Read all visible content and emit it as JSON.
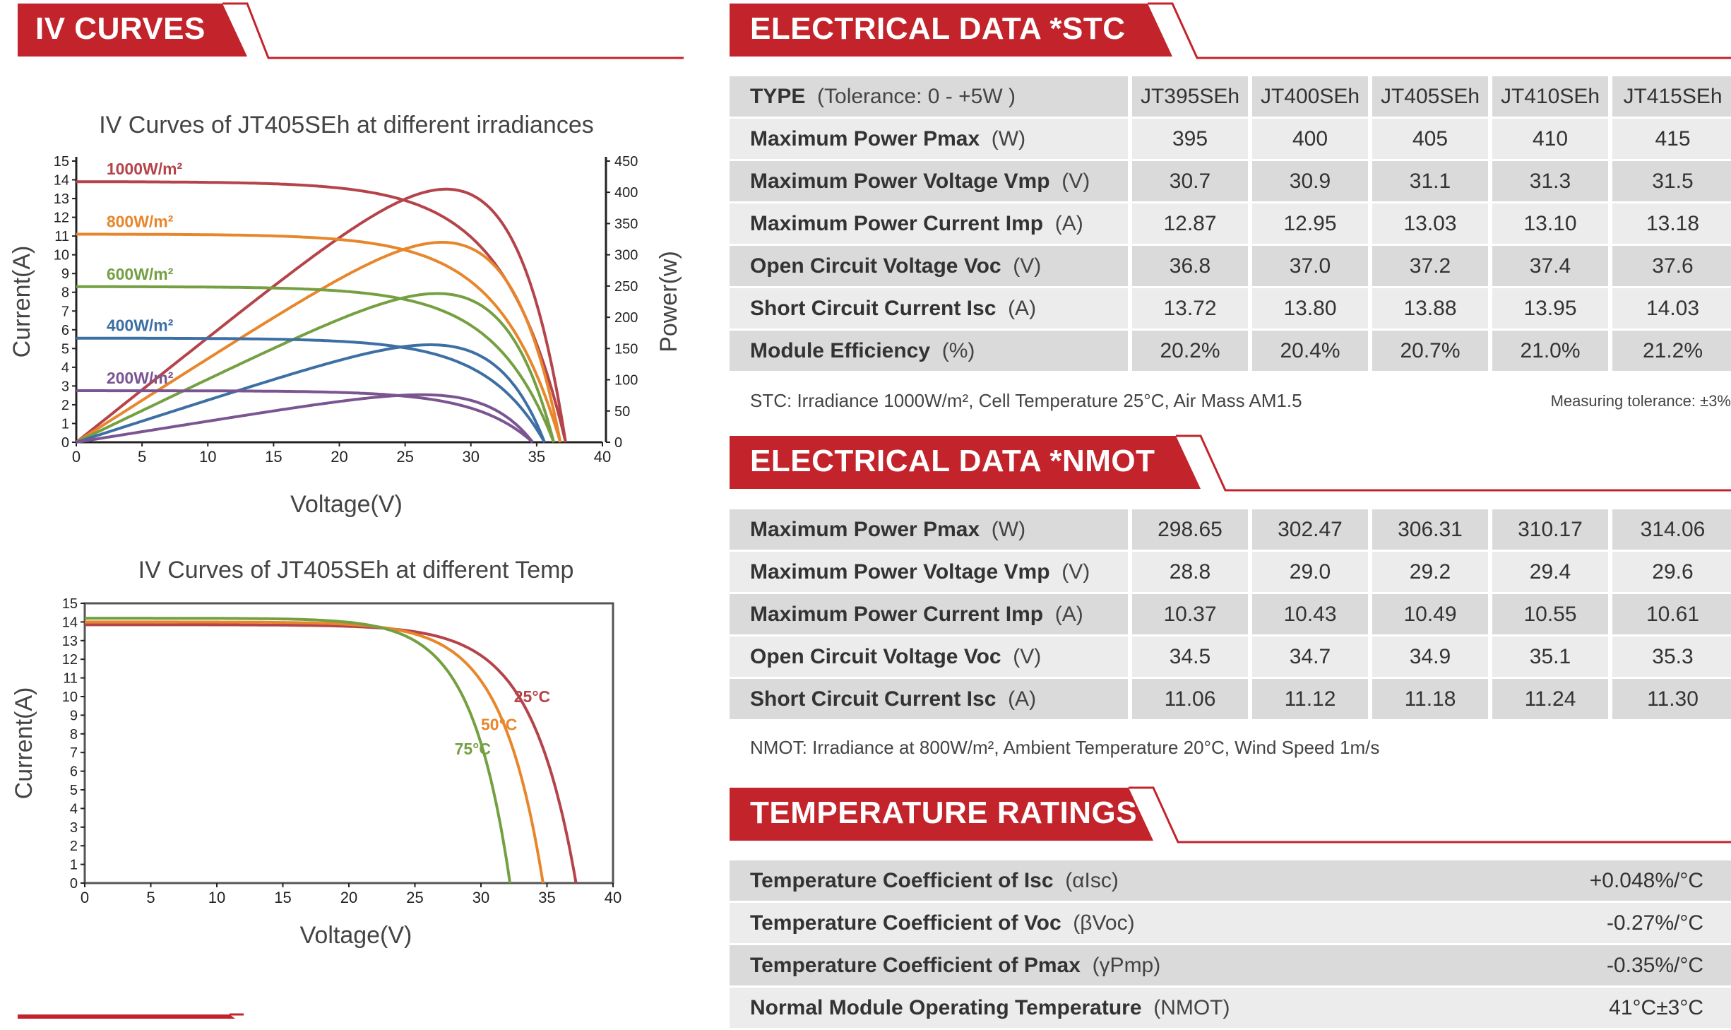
{
  "sections": {
    "iv_curves": "IV CURVES",
    "stc": "ELECTRICAL DATA *STC",
    "nmot": "ELECTRICAL DATA *NMOT",
    "temp": "TEMPERATURE RATINGS"
  },
  "stc_table": {
    "header": {
      "bold": "TYPE",
      "unit": "(Tolerance: 0 - +5W )"
    },
    "models": [
      "JT395SEh",
      "JT400SEh",
      "JT405SEh",
      "JT410SEh",
      "JT415SEh"
    ],
    "rows": [
      {
        "bold": "Maximum Power Pmax",
        "unit": "(W)",
        "values": [
          "395",
          "400",
          "405",
          "410",
          "415"
        ]
      },
      {
        "bold": "Maximum Power Voltage Vmp",
        "unit": "(V)",
        "values": [
          "30.7",
          "30.9",
          "31.1",
          "31.3",
          "31.5"
        ]
      },
      {
        "bold": "Maximum Power Current Imp",
        "unit": "(A)",
        "values": [
          "12.87",
          "12.95",
          "13.03",
          "13.10",
          "13.18"
        ]
      },
      {
        "bold": "Open Circuit Voltage Voc",
        "unit": "(V)",
        "values": [
          "36.8",
          "37.0",
          "37.2",
          "37.4",
          "37.6"
        ]
      },
      {
        "bold": "Short Circuit Current Isc",
        "unit": "(A)",
        "values": [
          "13.72",
          "13.80",
          "13.88",
          "13.95",
          "14.03"
        ]
      },
      {
        "bold": "Module Efficiency",
        "unit": "(%)",
        "values": [
          "20.2%",
          "20.4%",
          "20.7%",
          "21.0%",
          "21.2%"
        ]
      }
    ],
    "note": "STC: Irradiance 1000W/m², Cell Temperature 25°C, Air Mass AM1.5",
    "tolerance": "Measuring tolerance: ±3%"
  },
  "nmot_table": {
    "rows": [
      {
        "bold": "Maximum Power  Pmax",
        "unit": "(W)",
        "values": [
          "298.65",
          "302.47",
          "306.31",
          "310.17",
          "314.06"
        ]
      },
      {
        "bold": "Maximum Power Voltage Vmp",
        "unit": "(V)",
        "values": [
          "28.8",
          "29.0",
          "29.2",
          "29.4",
          "29.6"
        ]
      },
      {
        "bold": "Maximum Power Current Imp",
        "unit": "(A)",
        "values": [
          "10.37",
          "10.43",
          "10.49",
          "10.55",
          "10.61"
        ]
      },
      {
        "bold": "Open Circuit Voltage Voc",
        "unit": "(V)",
        "values": [
          "34.5",
          "34.7",
          "34.9",
          "35.1",
          "35.3"
        ]
      },
      {
        "bold": "Short Circuit Current Isc",
        "unit": "(A)",
        "values": [
          "11.06",
          "11.12",
          "11.18",
          "11.24",
          "11.30"
        ]
      }
    ],
    "note": "NMOT: Irradiance at 800W/m², Ambient Temperature 20°C, Wind Speed 1m/s"
  },
  "temp_table": {
    "rows": [
      {
        "bold": "Temperature Coefficient of Isc",
        "unit": "(αIsc)",
        "value": "+0.048%/°C"
      },
      {
        "bold": "Temperature Coefficient of Voc",
        "unit": "(βVoc)",
        "value": "-0.27%/°C"
      },
      {
        "bold": "Temperature Coefficient of Pmax",
        "unit": "(γPmp)",
        "value": "-0.35%/°C"
      },
      {
        "bold": "Normal Module Operating Temperature",
        "unit": "(NMOT)",
        "value": "41°C±3°C"
      }
    ]
  },
  "colors": {
    "brand_red": "#c3232b",
    "table_dark": "#dadada",
    "table_light": "#ececec"
  },
  "chart_data": [
    {
      "type": "line",
      "title": "IV Curves of JT405SEh at different irradiances",
      "xlabel": "Voltage(V)",
      "ylabel": "Current(A)",
      "y2label": "Power(w)",
      "xlim": [
        0,
        40
      ],
      "ylim": [
        0,
        15
      ],
      "y2lim": [
        0,
        450
      ],
      "x_ticks": [
        "0",
        "5",
        "10",
        "15",
        "20",
        "25",
        "30",
        "35",
        "40"
      ],
      "y_ticks": [
        "0",
        "1",
        "2",
        "3",
        "4",
        "5",
        "6",
        "7",
        "8",
        "9",
        "10",
        "11",
        "12",
        "13",
        "14",
        "15"
      ],
      "y2_ticks": [
        "0",
        "50",
        "100",
        "150",
        "200",
        "250",
        "300",
        "350",
        "400",
        "450"
      ],
      "series": [
        {
          "name": "1000W/m²",
          "color": "#b5434a",
          "isc": 13.9,
          "voc": 37.2,
          "vmp": 31.1,
          "imp": 13.03,
          "pmax": 405,
          "knee": 8
        },
        {
          "name": "800W/m²",
          "color": "#e8862b",
          "isc": 11.1,
          "voc": 36.8,
          "vmp": 30.8,
          "imp": 10.4,
          "pmax": 320,
          "knee": 8
        },
        {
          "name": "600W/m²",
          "color": "#74a042",
          "isc": 8.3,
          "voc": 36.3,
          "vmp": 30.5,
          "imp": 7.8,
          "pmax": 238,
          "knee": 8
        },
        {
          "name": "400W/m²",
          "color": "#3d6fa5",
          "isc": 5.55,
          "voc": 35.6,
          "vmp": 30.0,
          "imp": 5.2,
          "pmax": 156,
          "knee": 8
        },
        {
          "name": "200W/m²",
          "color": "#7a5591",
          "isc": 2.75,
          "voc": 34.7,
          "vmp": 29.3,
          "imp": 2.6,
          "pmax": 76,
          "knee": 8
        }
      ]
    },
    {
      "type": "line",
      "title": "IV Curves of JT405SEh at different Temp",
      "xlabel": "Voltage(V)",
      "ylabel": "Current(A)",
      "xlim": [
        0,
        40
      ],
      "ylim": [
        0,
        15
      ],
      "x_ticks": [
        "0",
        "5",
        "10",
        "15",
        "20",
        "25",
        "30",
        "35",
        "40"
      ],
      "y_ticks": [
        "0",
        "1",
        "2",
        "3",
        "4",
        "5",
        "6",
        "7",
        "8",
        "9",
        "10",
        "11",
        "12",
        "13",
        "14",
        "15"
      ],
      "series": [
        {
          "name": "25°C",
          "color": "#b5434a",
          "isc": 13.85,
          "voc": 37.2,
          "knee": 11
        },
        {
          "name": "50°C",
          "color": "#e8862b",
          "isc": 14.0,
          "voc": 34.7,
          "knee": 11
        },
        {
          "name": "75°C",
          "color": "#74a042",
          "isc": 14.2,
          "voc": 32.2,
          "knee": 11
        }
      ]
    }
  ]
}
